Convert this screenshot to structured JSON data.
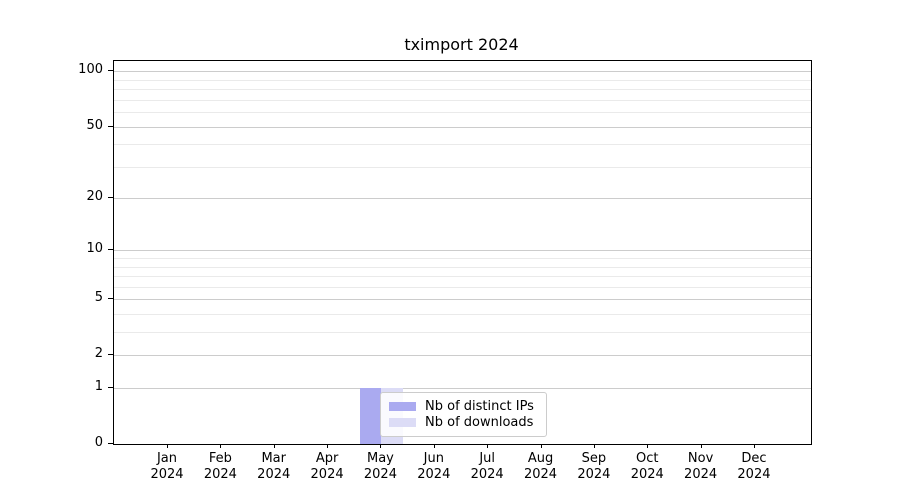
{
  "title": "tximport 2024",
  "chart_data": {
    "type": "bar",
    "title": "tximport 2024",
    "categories": [
      "Jan 2024",
      "Feb 2024",
      "Mar 2024",
      "Apr 2024",
      "May 2024",
      "Jun 2024",
      "Jul 2024",
      "Aug 2024",
      "Sep 2024",
      "Oct 2024",
      "Nov 2024",
      "Dec 2024"
    ],
    "series": [
      {
        "name": "Nb of distinct IPs",
        "color": "#aaaaf0",
        "values": [
          0,
          0,
          0,
          0,
          1,
          0,
          0,
          0,
          0,
          0,
          0,
          0
        ]
      },
      {
        "name": "Nb of downloads",
        "color": "#dcdcf6",
        "values": [
          0,
          0,
          0,
          0,
          1,
          0,
          0,
          0,
          0,
          0,
          0,
          0
        ]
      }
    ],
    "xlabel": "",
    "ylabel": "",
    "yscale": "log1p",
    "ylim": [
      0,
      114
    ],
    "y_major_ticks": [
      0,
      1,
      2,
      5,
      10,
      20,
      50,
      100
    ],
    "y_minor_ticks": [
      3,
      4,
      6,
      7,
      8,
      9,
      30,
      40,
      60,
      70,
      80,
      90
    ],
    "grid": "horizontal",
    "legend_position": "lower center inside"
  },
  "colors": {
    "bar_distinct_ips": "#aaaaf0",
    "bar_downloads": "#dcdcf6",
    "grid_major": "#cccccc",
    "grid_minor": "#eaeaea",
    "spine": "#000000",
    "text": "#000000",
    "legend_border": "#cccccc"
  }
}
